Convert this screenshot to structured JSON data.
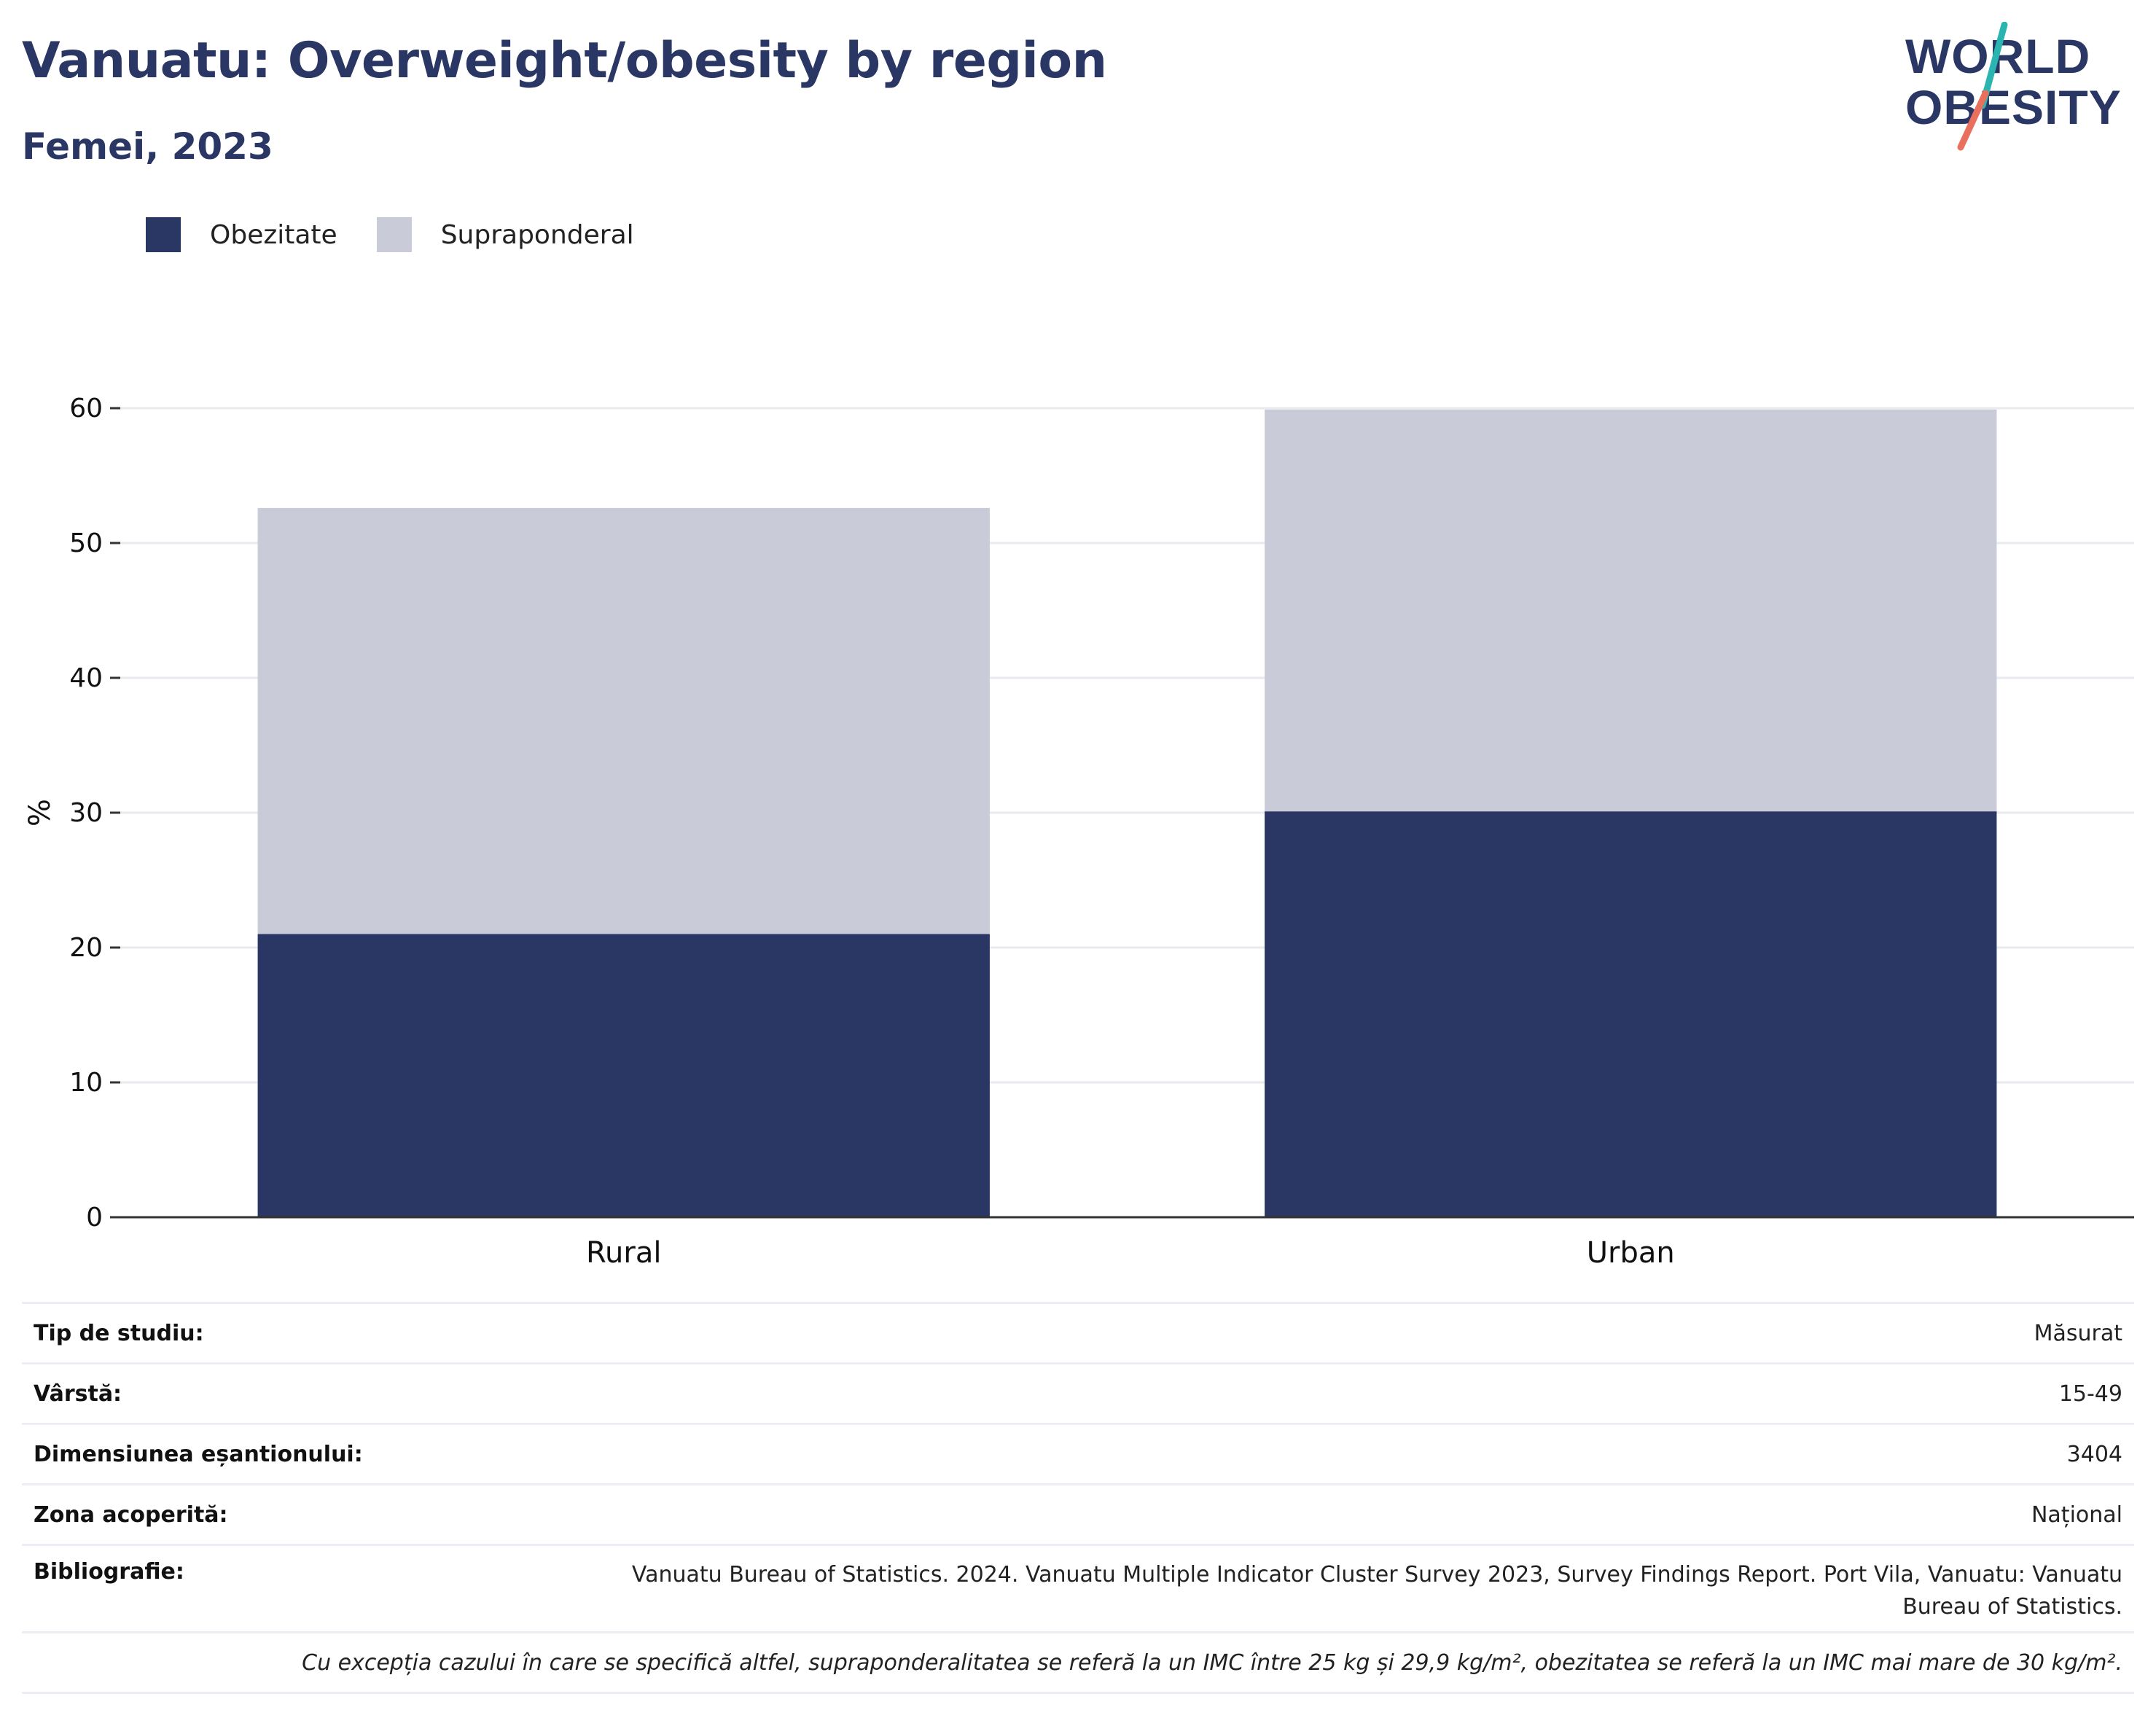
{
  "header": {
    "title": "Vanuatu: Overweight/obesity by region",
    "subtitle": "Femei, 2023"
  },
  "logo": {
    "text_line1": "WORLD",
    "text_line2": "OBESITY",
    "color_text": "#2a3664",
    "color_slash_top": "#2bb5b0",
    "color_slash_bottom": "#e8705c"
  },
  "legend": {
    "items": [
      {
        "label": "Obezitate",
        "color": "#2a3664"
      },
      {
        "label": "Supraponderal",
        "color": "#c9ccd8"
      }
    ]
  },
  "chart_data": {
    "type": "bar",
    "stacked": true,
    "categories": [
      "Rural",
      "Urban"
    ],
    "series": [
      {
        "name": "Obezitate",
        "values": [
          21,
          30.1
        ],
        "color": "#2a3664"
      },
      {
        "name": "Supraponderal",
        "values": [
          31.6,
          29.8
        ],
        "color": "#c9ccd8"
      }
    ],
    "ylabel": "%",
    "xlabel": "",
    "ylim": [
      0,
      60
    ],
    "yticks": [
      "0",
      "10",
      "20",
      "30",
      "40",
      "50",
      "60"
    ],
    "grid": true
  },
  "info": {
    "rows": [
      {
        "label": "Tip de studiu:",
        "value": "Măsurat"
      },
      {
        "label": "Vârstă:",
        "value": "15-49"
      },
      {
        "label": "Dimensiunea eșantionului:",
        "value": "3404"
      },
      {
        "label": "Zona acoperită:",
        "value": "Național"
      },
      {
        "label": "Bibliografie:",
        "value": "Vanuatu Bureau of Statistics. 2024. Vanuatu Multiple Indicator Cluster Survey 2023, Survey Findings Report. Port Vila, Vanuatu: Vanuatu Bureau of Statistics."
      }
    ],
    "footnote": "Cu excepția cazului în care se specifică altfel, supraponderalitatea se referă la un IMC între 25 kg și 29,9 kg/m², obezitatea se referă la un IMC mai mare de 30 kg/m²."
  }
}
